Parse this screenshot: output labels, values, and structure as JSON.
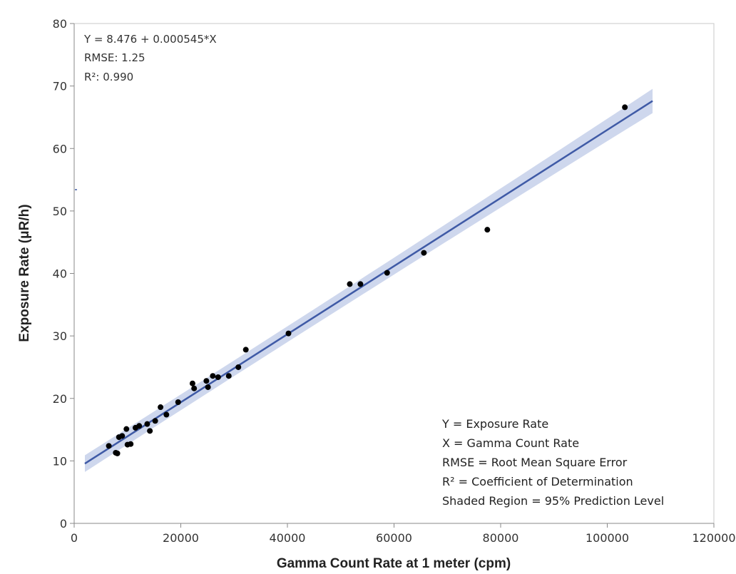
{
  "chart_data": {
    "type": "scatter",
    "xlabel": "Gamma Count Rate at 1 meter (cpm)",
    "ylabel": "Exposure Rate (μR/h)",
    "xlim": [
      0,
      120000
    ],
    "ylim": [
      0,
      80
    ],
    "xticks": [
      0,
      20000,
      40000,
      60000,
      80000,
      100000,
      120000
    ],
    "yticks": [
      0,
      10,
      20,
      30,
      40,
      50,
      60,
      70,
      80
    ],
    "grid": false,
    "points": [
      {
        "x": 6500,
        "y": 12.4
      },
      {
        "x": 7800,
        "y": 11.3
      },
      {
        "x": 8100,
        "y": 11.2
      },
      {
        "x": 8400,
        "y": 13.8
      },
      {
        "x": 9000,
        "y": 14.0
      },
      {
        "x": 9800,
        "y": 15.1
      },
      {
        "x": 10000,
        "y": 12.6
      },
      {
        "x": 10600,
        "y": 12.7
      },
      {
        "x": 11500,
        "y": 15.3
      },
      {
        "x": 12200,
        "y": 15.6
      },
      {
        "x": 13700,
        "y": 15.9
      },
      {
        "x": 14200,
        "y": 14.8
      },
      {
        "x": 15200,
        "y": 16.4
      },
      {
        "x": 16200,
        "y": 18.6
      },
      {
        "x": 17300,
        "y": 17.4
      },
      {
        "x": 19500,
        "y": 19.4
      },
      {
        "x": 22200,
        "y": 22.4
      },
      {
        "x": 22500,
        "y": 21.6
      },
      {
        "x": 24800,
        "y": 22.8
      },
      {
        "x": 25100,
        "y": 21.8
      },
      {
        "x": 26000,
        "y": 23.6
      },
      {
        "x": 27000,
        "y": 23.4
      },
      {
        "x": 29000,
        "y": 23.6
      },
      {
        "x": 30800,
        "y": 25.0
      },
      {
        "x": 32200,
        "y": 27.8
      },
      {
        "x": 40200,
        "y": 30.4
      },
      {
        "x": 51700,
        "y": 38.3
      },
      {
        "x": 53700,
        "y": 38.3
      },
      {
        "x": 58700,
        "y": 40.1
      },
      {
        "x": 65600,
        "y": 43.3
      },
      {
        "x": 77500,
        "y": 47.0
      },
      {
        "x": 103300,
        "y": 66.6
      }
    ],
    "fit": {
      "intercept": 8.476,
      "slope": 0.000545,
      "x_range": [
        2000,
        108500
      ],
      "pi_halfwidth": 1.25,
      "color": "#3f5aa6",
      "band_color": "#c6d0ea"
    },
    "point_color": "#000000",
    "annotations": {
      "equation": "Y = 8.476 + 0.000545*X",
      "rmse": "RMSE: 1.25",
      "r2_label": "R²: 0.990"
    },
    "legend_notes": [
      "Y = Exposure Rate",
      "X = Gamma Count Rate",
      "RMSE = Root Mean Square Error",
      "R² = Coefficient of Determination",
      "Shaded Region = 95% Prediction Level"
    ]
  }
}
